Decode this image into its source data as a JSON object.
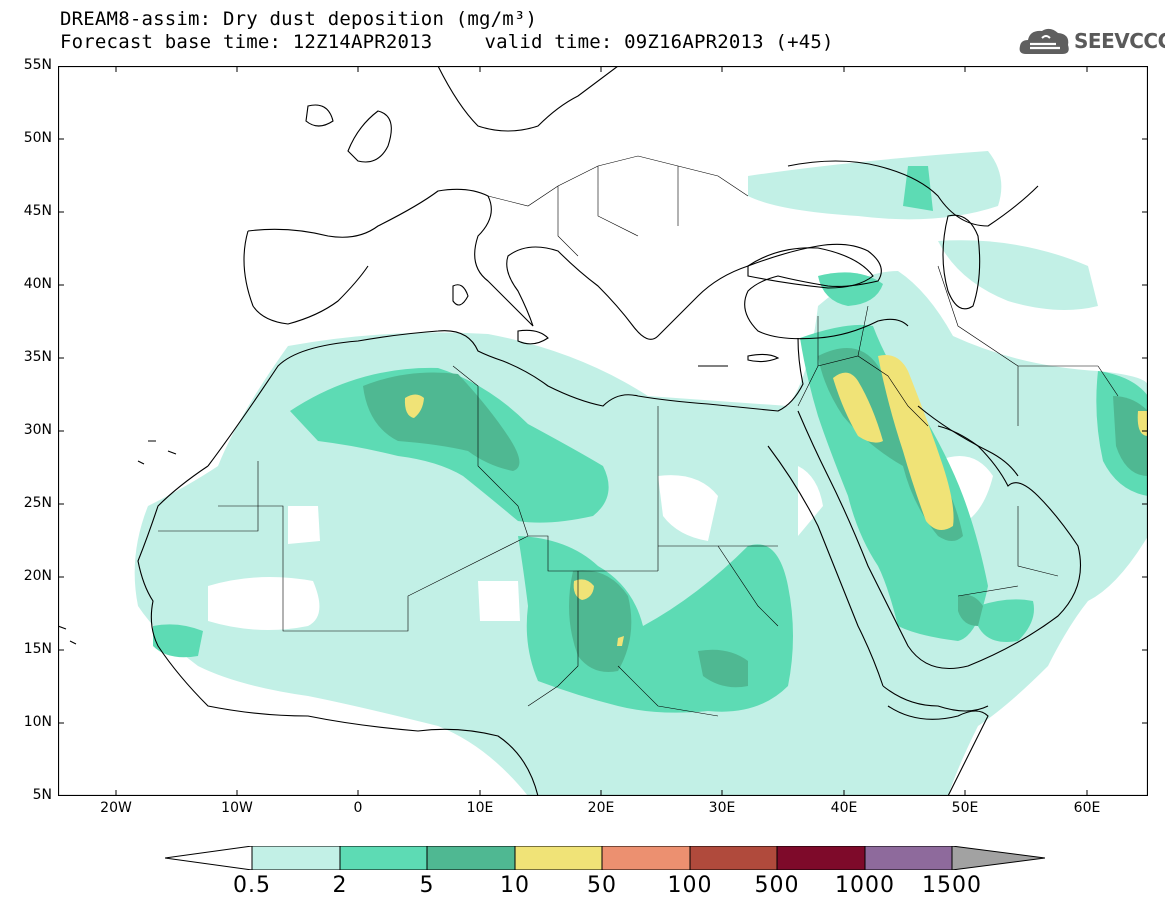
{
  "header": {
    "title_line1": "DREAM8-assim: Dry dust deposition (mg/m³)",
    "base_time": "Forecast base time: 12Z14APR2013",
    "valid_time": "valid time: 09Z16APR2013 (+45)",
    "logo_text": "SEEVCCC",
    "logo_icon": "cloud-icon"
  },
  "map": {
    "projection": "lat-lon",
    "lon_range": [
      -25,
      65
    ],
    "lat_range": [
      5,
      55
    ],
    "y_ticks": [
      "55N",
      "50N",
      "45N",
      "40N",
      "35N",
      "30N",
      "25N",
      "20N",
      "15N",
      "10N",
      "5N"
    ],
    "x_ticks": [
      "20W",
      "10W",
      "0",
      "10E",
      "20E",
      "30E",
      "40E",
      "50E",
      "60E"
    ]
  },
  "legend": {
    "labels": [
      "0.5",
      "2",
      "5",
      "10",
      "50",
      "100",
      "500",
      "1000",
      "1500"
    ],
    "colors": [
      "#c2f0e6",
      "#5ddbb4",
      "#4fb892",
      "#f0e377",
      "#ec9070",
      "#b04a3c",
      "#7e0a2a",
      "#8e6a9c",
      "#a2a2a2"
    ],
    "below_min_color": "#ffffff"
  }
}
